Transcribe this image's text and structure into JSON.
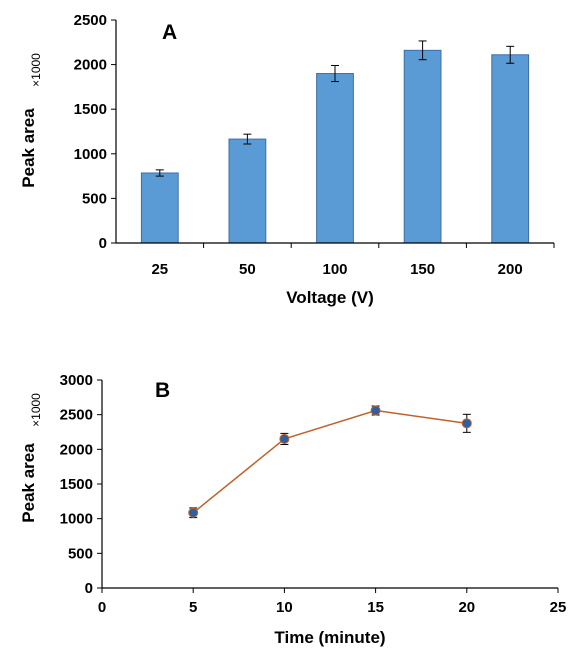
{
  "chart_data": [
    {
      "type": "bar",
      "panel_label": "A",
      "multiplier_label": "×1000",
      "xlabel": "Voltage (V)",
      "ylabel": "Peak area",
      "categories": [
        "25",
        "50",
        "100",
        "150",
        "200"
      ],
      "values": [
        785,
        1165,
        1900,
        2160,
        2110
      ],
      "errors": [
        35,
        55,
        90,
        105,
        95
      ],
      "ylim": [
        0,
        2500
      ],
      "yticks": [
        0,
        500,
        1000,
        1500,
        2000,
        2500
      ],
      "bar_color": "#5b9bd5",
      "grid": false
    },
    {
      "type": "line",
      "panel_label": "B",
      "multiplier_label": "×1000",
      "xlabel": "Time (minute)",
      "ylabel": "Peak area",
      "x": [
        5,
        10,
        15,
        20
      ],
      "y": [
        1085,
        2150,
        2560,
        2375
      ],
      "errors": [
        70,
        80,
        65,
        130
      ],
      "xlim": [
        0,
        25
      ],
      "xticks": [
        0,
        5,
        10,
        15,
        20,
        25
      ],
      "ylim": [
        0,
        3000
      ],
      "yticks": [
        0,
        500,
        1000,
        1500,
        2000,
        2500,
        3000
      ],
      "line_color": "#c0622b",
      "marker_color": "#2e5f9e",
      "grid": false
    }
  ]
}
